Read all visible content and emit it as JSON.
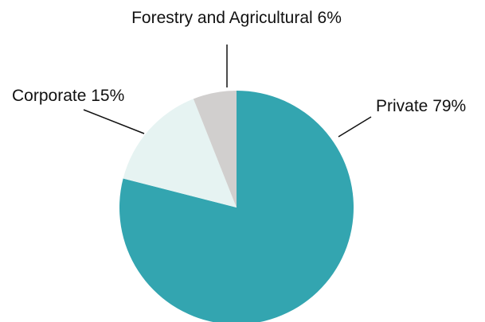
{
  "chart_data": {
    "type": "pie",
    "categories": [
      "Private",
      "Corporate",
      "Forestry and Agricultural"
    ],
    "values": [
      79,
      15,
      6
    ],
    "value_labels": [
      "79%",
      "15%",
      "6%"
    ],
    "colors": [
      "#33a5b0",
      "#e6f3f2",
      "#d1cfce"
    ]
  }
}
